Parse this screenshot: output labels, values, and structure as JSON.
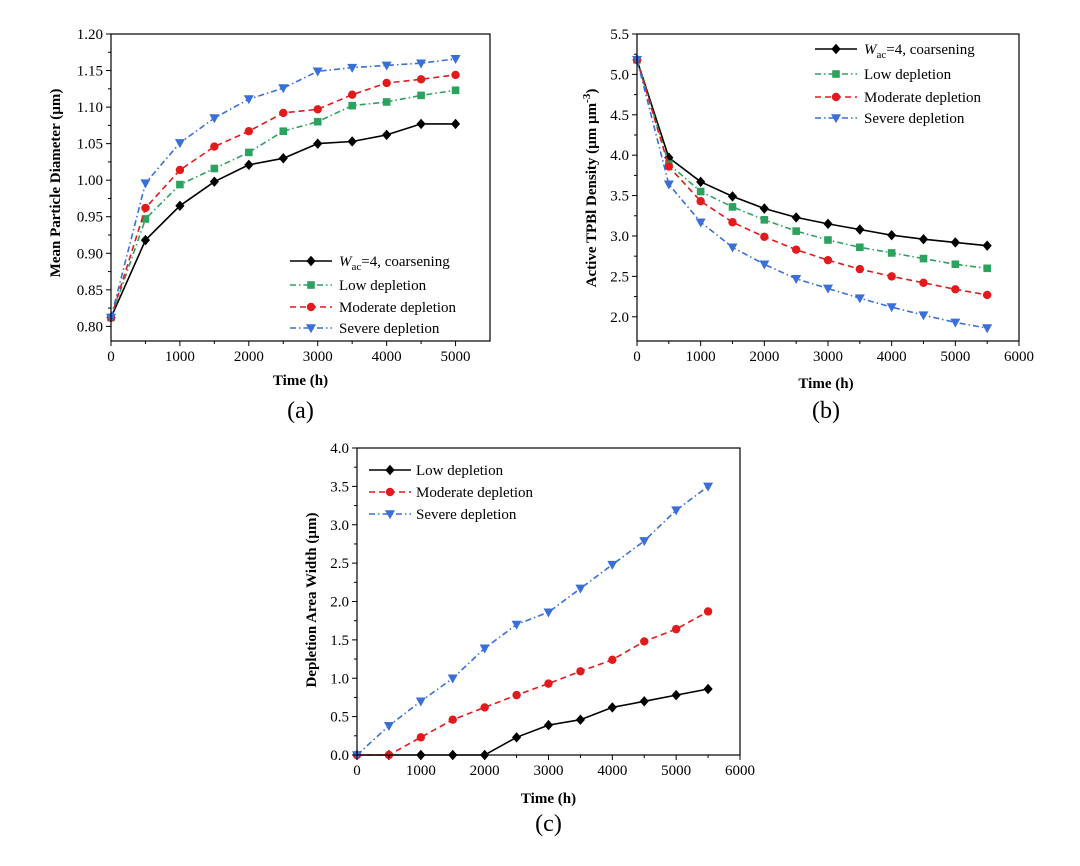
{
  "chart_data": [
    {
      "id": "a",
      "type": "line",
      "panel_label": "(a)",
      "xlabel": "Time (h)",
      "ylabel": "Mean Particle Diameter (µm)",
      "xlim": [
        0,
        5500
      ],
      "ylim": [
        0.78,
        1.2
      ],
      "xticks": [
        0,
        1000,
        2000,
        3000,
        4000,
        5000
      ],
      "yticks": [
        0.8,
        0.85,
        0.9,
        0.95,
        1.0,
        1.05,
        1.1,
        1.15,
        1.2
      ],
      "ytick_decimals": 2,
      "legend_position": "bottom-right",
      "series": [
        {
          "key": "coarsening",
          "name": "Wac=4, coarsening",
          "name_main": "W",
          "name_sub": "ac",
          "name_rest": "=4, coarsening",
          "color": "#000000",
          "marker": "diamond",
          "dash": "solid",
          "x": [
            0,
            500,
            1000,
            1500,
            2000,
            2500,
            3000,
            3500,
            4000,
            4500,
            5000
          ],
          "y": [
            0.812,
            0.918,
            0.965,
            0.998,
            1.021,
            1.03,
            1.05,
            1.053,
            1.062,
            1.077,
            1.077
          ]
        },
        {
          "key": "low",
          "name": "Low depletion",
          "color": "#2ca25f",
          "marker": "square",
          "dash": "dashdot",
          "x": [
            0,
            500,
            1000,
            1500,
            2000,
            2500,
            3000,
            3500,
            4000,
            4500,
            5000
          ],
          "y": [
            0.812,
            0.947,
            0.994,
            1.016,
            1.038,
            1.067,
            1.08,
            1.102,
            1.107,
            1.116,
            1.123
          ]
        },
        {
          "key": "moderate",
          "name": "Moderate depletion",
          "color": "#e31a1c",
          "marker": "circle",
          "dash": "dash",
          "x": [
            0,
            500,
            1000,
            1500,
            2000,
            2500,
            3000,
            3500,
            4000,
            4500,
            5000
          ],
          "y": [
            0.812,
            0.962,
            1.014,
            1.046,
            1.067,
            1.092,
            1.097,
            1.117,
            1.133,
            1.138,
            1.144
          ]
        },
        {
          "key": "severe",
          "name": "Severe depletion",
          "color": "#3a6fd8",
          "marker": "triangle-down",
          "dash": "dashdot",
          "x": [
            0,
            500,
            1000,
            1500,
            2000,
            2500,
            3000,
            3500,
            4000,
            4500,
            5000
          ],
          "y": [
            0.812,
            0.996,
            1.051,
            1.085,
            1.111,
            1.126,
            1.149,
            1.154,
            1.157,
            1.16,
            1.166
          ]
        }
      ]
    },
    {
      "id": "b",
      "type": "line",
      "panel_label": "(b)",
      "xlabel": "Time (h)",
      "ylabel_main": "Active TPBl Density (µm µm",
      "ylabel_sup": "-3",
      "ylabel_end": ")",
      "xlim": [
        0,
        6000
      ],
      "ylim": [
        1.7,
        5.5
      ],
      "xticks": [
        0,
        1000,
        2000,
        3000,
        4000,
        5000,
        6000
      ],
      "yticks": [
        2.0,
        2.5,
        3.0,
        3.5,
        4.0,
        4.5,
        5.0,
        5.5
      ],
      "ytick_decimals": 1,
      "legend_position": "top-right",
      "series": [
        {
          "key": "coarsening",
          "name": "Wac=4, coarsening",
          "name_main": "W",
          "name_sub": "ac",
          "name_rest": "=4, coarsening",
          "color": "#000000",
          "marker": "diamond",
          "dash": "solid",
          "x": [
            0,
            500,
            1000,
            1500,
            2000,
            2500,
            3000,
            3500,
            4000,
            4500,
            5000,
            5500
          ],
          "y": [
            5.18,
            3.97,
            3.67,
            3.49,
            3.34,
            3.23,
            3.15,
            3.08,
            3.01,
            2.96,
            2.92,
            2.88
          ]
        },
        {
          "key": "low",
          "name": "Low depletion",
          "color": "#2ca25f",
          "marker": "square",
          "dash": "dashdot",
          "x": [
            0,
            500,
            1000,
            1500,
            2000,
            2500,
            3000,
            3500,
            4000,
            4500,
            5000,
            5500
          ],
          "y": [
            5.18,
            3.89,
            3.55,
            3.36,
            3.2,
            3.06,
            2.95,
            2.86,
            2.79,
            2.72,
            2.65,
            2.6
          ]
        },
        {
          "key": "moderate",
          "name": "Moderate depletion",
          "color": "#e31a1c",
          "marker": "circle",
          "dash": "dash",
          "x": [
            0,
            500,
            1000,
            1500,
            2000,
            2500,
            3000,
            3500,
            4000,
            4500,
            5000,
            5500
          ],
          "y": [
            5.18,
            3.86,
            3.43,
            3.17,
            2.99,
            2.83,
            2.7,
            2.59,
            2.5,
            2.42,
            2.34,
            2.27
          ]
        },
        {
          "key": "severe",
          "name": "Severe depletion",
          "color": "#3a6fd8",
          "marker": "triangle-down",
          "dash": "dashdot",
          "x": [
            0,
            500,
            1000,
            1500,
            2000,
            2500,
            3000,
            3500,
            4000,
            4500,
            5000,
            5500
          ],
          "y": [
            5.18,
            3.64,
            3.17,
            2.86,
            2.65,
            2.47,
            2.35,
            2.23,
            2.12,
            2.02,
            1.93,
            1.86
          ]
        }
      ]
    },
    {
      "id": "c",
      "type": "line",
      "panel_label": "(c)",
      "xlabel": "Time (h)",
      "ylabel": "Depletion Area Width (µm)",
      "xlim": [
        0,
        6000
      ],
      "ylim": [
        0,
        4.0
      ],
      "xticks": [
        0,
        1000,
        2000,
        3000,
        4000,
        5000,
        6000
      ],
      "yticks": [
        0.0,
        0.5,
        1.0,
        1.5,
        2.0,
        2.5,
        3.0,
        3.5,
        4.0
      ],
      "ytick_decimals": 1,
      "legend_position": "top-left",
      "series": [
        {
          "key": "low",
          "name": "Low depletion",
          "color": "#000000",
          "marker": "diamond",
          "dash": "solid",
          "x": [
            0,
            500,
            1000,
            1500,
            2000,
            2500,
            3000,
            3500,
            4000,
            4500,
            5000,
            5500
          ],
          "y": [
            0.0,
            0.0,
            0.0,
            0.0,
            0.0,
            0.23,
            0.39,
            0.46,
            0.62,
            0.7,
            0.78,
            0.86
          ]
        },
        {
          "key": "moderate",
          "name": "Moderate depletion",
          "color": "#e31a1c",
          "marker": "circle",
          "dash": "dash",
          "x": [
            0,
            500,
            1000,
            1500,
            2000,
            2500,
            3000,
            3500,
            4000,
            4500,
            5000,
            5500
          ],
          "y": [
            0.0,
            0.0,
            0.23,
            0.46,
            0.62,
            0.78,
            0.93,
            1.09,
            1.24,
            1.48,
            1.64,
            1.87
          ]
        },
        {
          "key": "severe",
          "name": "Severe depletion",
          "color": "#3a6fd8",
          "marker": "triangle-down",
          "dash": "dashdot",
          "x": [
            0,
            500,
            1000,
            1500,
            2000,
            2500,
            3000,
            3500,
            4000,
            4500,
            5000,
            5500
          ],
          "y": [
            0.0,
            0.38,
            0.7,
            1.0,
            1.39,
            1.7,
            1.86,
            2.17,
            2.48,
            2.79,
            3.19,
            3.5
          ]
        }
      ]
    }
  ]
}
